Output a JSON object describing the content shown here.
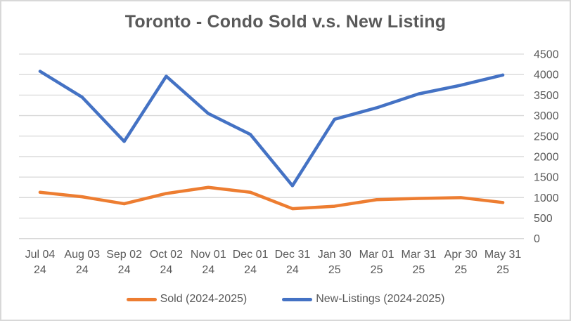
{
  "chart_data": {
    "type": "line",
    "title": "Toronto - Condo Sold v.s. New Listing",
    "categories": [
      [
        "Jul 04",
        "24"
      ],
      [
        "Aug 03",
        "24"
      ],
      [
        "Sep 02",
        "24"
      ],
      [
        "Oct 02",
        "24"
      ],
      [
        "Nov 01",
        "24"
      ],
      [
        "Dec 01",
        "24"
      ],
      [
        "Dec 31",
        "24"
      ],
      [
        "Jan 30",
        "25"
      ],
      [
        "Mar 01",
        "25"
      ],
      [
        "Mar 31",
        "25"
      ],
      [
        "Apr 30",
        "25"
      ],
      [
        "May 31",
        "25"
      ]
    ],
    "series": [
      {
        "key": "sold",
        "name": "Sold (2024-2025)",
        "color": "#ED7D31",
        "values": [
          1130,
          1020,
          850,
          1100,
          1250,
          1130,
          730,
          790,
          950,
          980,
          1000,
          880
        ]
      },
      {
        "key": "new-listings",
        "name": "New-Listings (2024-2025)",
        "color": "#4472C4",
        "values": [
          4080,
          3450,
          2370,
          3960,
          3050,
          2540,
          1290,
          2910,
          3190,
          3530,
          3740,
          3990
        ]
      }
    ],
    "ylim": [
      0,
      4500
    ],
    "y_tick_step": 500,
    "y_tick_labels": [
      "0",
      "500",
      "1000",
      "1500",
      "2000",
      "2500",
      "3000",
      "3500",
      "4000",
      "4500"
    ],
    "y_axis_side": "right",
    "xlabel": "",
    "ylabel": "",
    "grid": "horizontal",
    "grid_color": "#D9D9D9",
    "tick_label_color": "#595959",
    "title_color": "#595959",
    "legend_position": "bottom"
  }
}
